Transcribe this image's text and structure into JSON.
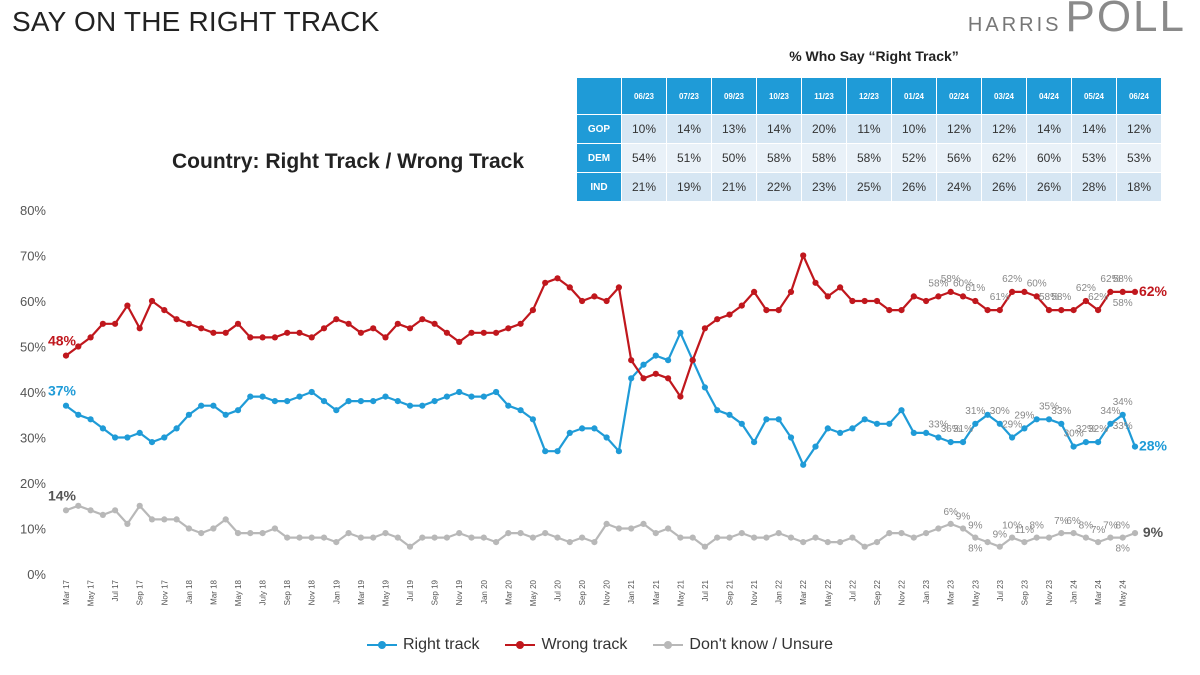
{
  "header": {
    "title": "SAY ON THE RIGHT TRACK",
    "brand_small": "HARRIS",
    "brand_big": "POLL"
  },
  "table": {
    "caption": "% Who Say “Right Track”",
    "columns": [
      "06/23",
      "07/23",
      "09/23",
      "10/23",
      "11/23",
      "12/23",
      "01/24",
      "02/24",
      "03/24",
      "04/24",
      "05/24",
      "06/24"
    ],
    "rows": [
      {
        "label": "GOP",
        "values": [
          "10%",
          "14%",
          "13%",
          "14%",
          "20%",
          "11%",
          "10%",
          "12%",
          "12%",
          "14%",
          "14%",
          "12%"
        ]
      },
      {
        "label": "DEM",
        "values": [
          "54%",
          "51%",
          "50%",
          "58%",
          "58%",
          "58%",
          "52%",
          "56%",
          "62%",
          "60%",
          "53%",
          "53%"
        ]
      },
      {
        "label": "IND",
        "values": [
          "21%",
          "19%",
          "21%",
          "22%",
          "23%",
          "25%",
          "26%",
          "24%",
          "26%",
          "26%",
          "28%",
          "18%"
        ]
      }
    ],
    "header_color": "#1f9bd7"
  },
  "chart_data": {
    "type": "line",
    "title": "Country: Right Track / Wrong Track",
    "ylim": [
      0,
      80
    ],
    "yticks": [
      "0%",
      "10%",
      "20%",
      "30%",
      "40%",
      "50%",
      "60%",
      "70%",
      "80%"
    ],
    "grid": false,
    "legend_position": "bottom",
    "x": [
      "Mar 17",
      "Apr 17",
      "May 17",
      "Jun 17",
      "Jul 17",
      "Aug 17",
      "Sep 17",
      "Oct 17",
      "Nov 17",
      "Dec 17",
      "Jan 18",
      "Feb 18",
      "Mar 18",
      "Apr 18",
      "May 18",
      "June 18",
      "July 18",
      "Aug 18",
      "Sep 18",
      "Oct 18",
      "Nov 18",
      "Dec 18",
      "Jan 19",
      "Feb 19",
      "Mar 19",
      "Apr 19",
      "May 19",
      "Jun 19",
      "Jul 19",
      "Aug 19",
      "Sep 19",
      "Oct 19",
      "Nov 19",
      "Dec 19",
      "Jan 20",
      "Feb 20",
      "Mar 20",
      "Apr 20",
      "May 20",
      "Jun 20",
      "Jul 20",
      "Aug 20",
      "Sep 20",
      "Oct 20",
      "Nov 20",
      "Dec 20",
      "Jan 21",
      "Feb 21",
      "Mar 21",
      "Apr 21",
      "May 21",
      "Jun 21",
      "Jul 21",
      "Aug 21",
      "Sep 21",
      "Oct 21",
      "Nov 21",
      "Dec 21",
      "Jan 22",
      "Feb 22",
      "Mar 22",
      "Apr 22",
      "May 22",
      "Jun 22",
      "Jul 22",
      "Aug 22",
      "Sep 22",
      "Oct 22",
      "Nov 22",
      "Dec 22",
      "Jan 23",
      "Feb 23",
      "Mar 23",
      "Apr 23",
      "May 23",
      "Jun 23",
      "Jul 23",
      "Aug 23",
      "Sep 23",
      "Oct 23",
      "Nov 23",
      "Dec 23",
      "Jan 24",
      "Feb 24",
      "Mar 24",
      "Apr 24",
      "May 24",
      "Jun 24"
    ],
    "tick_labels": [
      "Mar 17",
      "May 17",
      "Jul 17",
      "Sep 17",
      "Nov 17",
      "Jan 18",
      "Mar 18",
      "May 18",
      "July 18",
      "Sep 18",
      "Nov 18",
      "Jan 19",
      "Mar 19",
      "May 19",
      "Jul 19",
      "Sep 19",
      "Nov 19",
      "Jan 20",
      "Mar 20",
      "May 20",
      "Jul 20",
      "Sep 20",
      "Nov 20",
      "Jan 21",
      "Mar 21",
      "May 21",
      "Jul 21",
      "Sep 21",
      "Nov 21",
      "Jan 22",
      "Mar 22",
      "May 22",
      "Jul 22",
      "Sep 22",
      "Nov 22",
      "Jan 23",
      "Mar 23",
      "May 23",
      "Jul 23",
      "Sep 23",
      "Nov 23",
      "Jan 24",
      "Mar 24",
      "May 24"
    ],
    "series": [
      {
        "name": "Right track",
        "color": "#1f9bd7",
        "values": [
          37,
          35,
          34,
          32,
          30,
          30,
          31,
          29,
          30,
          32,
          35,
          37,
          37,
          35,
          36,
          39,
          39,
          38,
          38,
          39,
          40,
          38,
          36,
          38,
          38,
          38,
          39,
          38,
          37,
          37,
          38,
          39,
          40,
          39,
          39,
          40,
          37,
          36,
          34,
          27,
          27,
          31,
          32,
          32,
          30,
          27,
          43,
          46,
          48,
          47,
          53,
          47,
          41,
          36,
          35,
          33,
          29,
          34,
          34,
          30,
          24,
          28,
          32,
          31,
          32,
          34,
          33,
          33,
          36,
          31,
          31,
          30,
          29,
          29,
          33,
          35,
          33,
          30,
          32,
          34,
          34,
          33,
          28,
          29,
          29,
          33,
          35,
          28
        ]
      },
      {
        "name": "Wrong track",
        "color": "#c0171d",
        "values": [
          48,
          50,
          52,
          55,
          55,
          59,
          54,
          60,
          58,
          56,
          55,
          54,
          53,
          53,
          55,
          52,
          52,
          52,
          53,
          53,
          52,
          54,
          56,
          55,
          53,
          54,
          52,
          55,
          54,
          56,
          55,
          53,
          51,
          53,
          53,
          53,
          54,
          55,
          58,
          64,
          65,
          63,
          60,
          61,
          60,
          63,
          47,
          43,
          44,
          43,
          39,
          47,
          54,
          56,
          57,
          59,
          62,
          58,
          58,
          62,
          70,
          64,
          61,
          63,
          60,
          60,
          60,
          58,
          58,
          61,
          60,
          61,
          62,
          61,
          60,
          58,
          58,
          62,
          62,
          61,
          58,
          58,
          58,
          60,
          58,
          62,
          62,
          62
        ]
      },
      {
        "name": "Don't know / Unsure",
        "color": "#b8b8b8",
        "values": [
          14,
          15,
          14,
          13,
          14,
          11,
          15,
          12,
          12,
          12,
          10,
          9,
          10,
          12,
          9,
          9,
          9,
          10,
          8,
          8,
          8,
          8,
          7,
          9,
          8,
          8,
          9,
          8,
          6,
          8,
          8,
          8,
          9,
          8,
          8,
          7,
          9,
          9,
          8,
          9,
          8,
          7,
          8,
          7,
          11,
          10,
          10,
          11,
          9,
          10,
          8,
          8,
          6,
          8,
          8,
          9,
          8,
          8,
          9,
          8,
          7,
          8,
          7,
          7,
          8,
          6,
          7,
          9,
          9,
          8,
          9,
          10,
          11,
          10,
          8,
          7,
          6,
          8,
          7,
          8,
          8,
          9,
          9,
          8,
          7,
          8,
          8,
          9
        ]
      }
    ],
    "data_labels": [
      {
        "series": 1,
        "text": "48%",
        "index": 0
      },
      {
        "series": 0,
        "text": "37%",
        "index": 0
      },
      {
        "series": 2,
        "text": "14%",
        "index": 0
      },
      {
        "series": 1,
        "text": "62%",
        "index": 87
      },
      {
        "series": 0,
        "text": "28%",
        "index": 87
      },
      {
        "series": 2,
        "text": "9%",
        "index": 87
      },
      {
        "series": 1,
        "text": "58%",
        "index": 71
      },
      {
        "series": 1,
        "text": "58%",
        "index": 72
      },
      {
        "series": 1,
        "text": "60%",
        "index": 73
      },
      {
        "series": 1,
        "text": "61%",
        "index": 74
      },
      {
        "series": 1,
        "text": "61%",
        "index": 76
      },
      {
        "series": 1,
        "text": "62%",
        "index": 77
      },
      {
        "series": 1,
        "text": "60%",
        "index": 79
      },
      {
        "series": 1,
        "text": "58%",
        "index": 80
      },
      {
        "series": 1,
        "text": "58%",
        "index": 81
      },
      {
        "series": 1,
        "text": "62%",
        "index": 83
      },
      {
        "series": 1,
        "text": "62%",
        "index": 84
      },
      {
        "series": 1,
        "text": "62%",
        "index": 85
      },
      {
        "series": 1,
        "text": "58%",
        "index": 86
      },
      {
        "series": 1,
        "text": "58%",
        "index": 86
      },
      {
        "series": 0,
        "text": "33%",
        "index": 71
      },
      {
        "series": 0,
        "text": "36%",
        "index": 72
      },
      {
        "series": 0,
        "text": "31%",
        "index": 73
      },
      {
        "series": 0,
        "text": "31%",
        "index": 74
      },
      {
        "series": 0,
        "text": "30%",
        "index": 76
      },
      {
        "series": 0,
        "text": "29%",
        "index": 77
      },
      {
        "series": 0,
        "text": "29%",
        "index": 78
      },
      {
        "series": 0,
        "text": "35%",
        "index": 80
      },
      {
        "series": 0,
        "text": "33%",
        "index": 81
      },
      {
        "series": 0,
        "text": "30%",
        "index": 82
      },
      {
        "series": 0,
        "text": "32%",
        "index": 83
      },
      {
        "series": 0,
        "text": "32%",
        "index": 84
      },
      {
        "series": 0,
        "text": "34%",
        "index": 85
      },
      {
        "series": 0,
        "text": "34%",
        "index": 86
      },
      {
        "series": 0,
        "text": "33%",
        "index": 86
      },
      {
        "series": 2,
        "text": "6%",
        "index": 72
      },
      {
        "series": 2,
        "text": "9%",
        "index": 73
      },
      {
        "series": 2,
        "text": "9%",
        "index": 74
      },
      {
        "series": 2,
        "text": "8%",
        "index": 74
      },
      {
        "series": 2,
        "text": "9%",
        "index": 76
      },
      {
        "series": 2,
        "text": "11%",
        "index": 78
      },
      {
        "series": 2,
        "text": "10%",
        "index": 77
      },
      {
        "series": 2,
        "text": "8%",
        "index": 79
      },
      {
        "series": 2,
        "text": "7%",
        "index": 81
      },
      {
        "series": 2,
        "text": "6%",
        "index": 82
      },
      {
        "series": 2,
        "text": "8%",
        "index": 83
      },
      {
        "series": 2,
        "text": "7%",
        "index": 84
      },
      {
        "series": 2,
        "text": "7%",
        "index": 85
      },
      {
        "series": 2,
        "text": "8%",
        "index": 86
      },
      {
        "series": 2,
        "text": "8%",
        "index": 86
      }
    ]
  }
}
